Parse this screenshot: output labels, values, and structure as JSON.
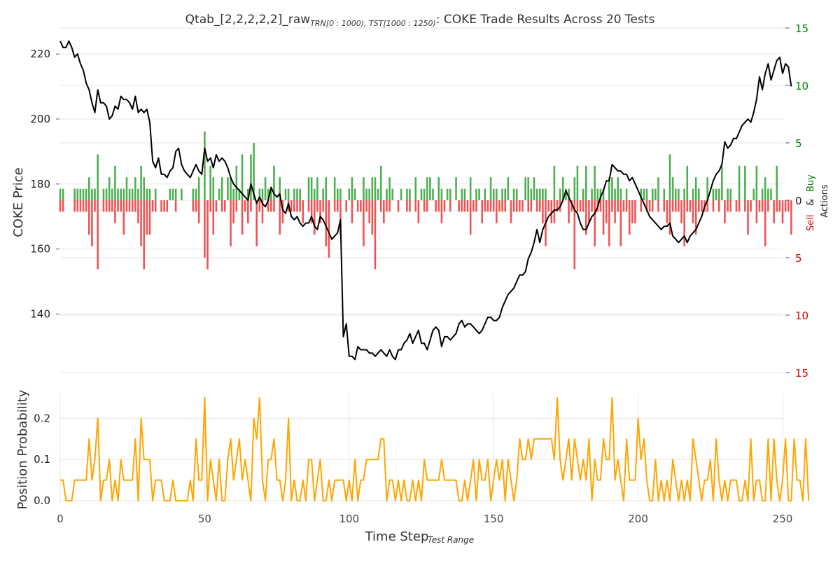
{
  "title": {
    "prefix": "Qtab_[2,2,2,2,2]_raw",
    "subscript": "TRN[0 : 1000), TST[1000 : 1250)",
    "suffix": ": COKE Trade Results Across 20 Tests"
  },
  "colors": {
    "price": "#000000",
    "buy": "#4caf50",
    "sell": "#f05252",
    "prob": "#ffa500",
    "grid": "#e6e6e6",
    "buy_tick": "#008000",
    "sell_tick": "#e00000"
  },
  "labels": {
    "y_price": "COKE Price",
    "y_actions_sell": "Sell",
    "y_actions_amp": "&",
    "y_actions_buy": "Buy",
    "y_actions_word": "Actions",
    "y_prob": "Position Probability",
    "x_main": "Time Step",
    "x_sub": "Test Range"
  },
  "chart_data": [
    {
      "type": "line",
      "name": "price-and-actions",
      "xlim": [
        0,
        250
      ],
      "ylim": [
        122,
        228
      ],
      "y_ticks": [
        140,
        160,
        180,
        200,
        220
      ],
      "x_ticks": [
        0,
        50,
        100,
        150,
        200,
        250
      ],
      "actions_ylim": [
        -15,
        15
      ],
      "actions_ticks": [
        {
          "value": 15,
          "label": "15",
          "side": "buy"
        },
        {
          "value": 10,
          "label": "10",
          "side": "buy"
        },
        {
          "value": 5,
          "label": "5",
          "side": "buy"
        },
        {
          "value": 0,
          "label": "0",
          "side": "zero"
        },
        {
          "value": -5,
          "label": "5",
          "side": "sell"
        },
        {
          "value": -10,
          "label": "10",
          "side": "sell"
        },
        {
          "value": -15,
          "label": "15",
          "side": "sell"
        }
      ],
      "price": [
        224,
        222,
        222,
        224,
        222,
        219,
        220,
        217,
        215,
        211,
        209,
        205,
        202,
        209,
        205,
        205,
        204,
        200,
        201,
        204,
        203,
        207,
        206,
        206,
        205,
        203,
        207,
        202,
        203,
        202,
        203,
        199,
        187,
        185,
        188,
        183,
        183,
        182,
        184,
        185,
        190,
        191,
        186,
        184,
        183,
        182,
        184,
        186,
        184,
        183,
        191,
        187,
        188,
        185,
        189,
        187,
        188,
        187,
        185,
        182,
        180,
        179,
        178,
        177,
        176,
        175,
        180,
        177,
        174,
        176,
        174,
        173,
        175,
        179,
        177,
        176,
        177,
        172,
        171,
        174,
        170,
        169,
        170,
        168,
        167,
        168,
        168,
        170,
        167,
        166,
        170,
        169,
        167,
        165,
        163,
        164,
        165,
        169,
        133,
        137,
        127,
        127,
        126,
        130,
        129,
        129,
        129,
        128,
        128,
        127,
        128,
        129,
        128,
        127,
        129,
        127,
        126,
        129,
        129,
        131,
        132,
        134,
        131,
        133,
        135,
        131,
        131,
        129,
        132,
        135,
        136,
        135,
        130,
        133,
        133,
        132,
        133,
        134,
        137,
        138,
        136,
        137,
        137,
        136,
        135,
        134,
        135,
        137,
        139,
        139,
        138,
        138,
        139,
        142,
        144,
        146,
        147,
        148,
        150,
        152,
        152,
        153,
        157,
        159,
        162,
        166,
        162,
        166,
        168,
        170,
        171,
        172,
        172,
        173,
        175,
        178,
        176,
        174,
        172,
        171,
        168,
        166,
        166,
        168,
        170,
        171,
        173,
        176,
        178,
        181,
        181,
        186,
        185,
        184,
        184,
        183,
        183,
        181,
        182,
        180,
        178,
        176,
        174,
        172,
        170,
        169,
        168,
        167,
        166,
        167,
        167,
        168,
        164,
        163,
        162,
        163,
        164,
        162,
        164,
        165,
        166,
        168,
        170,
        173,
        175,
        178,
        181,
        183,
        184,
        186,
        193,
        191,
        192,
        194,
        194,
        196,
        198,
        199,
        200,
        199,
        202,
        206,
        213,
        209,
        214,
        217,
        212,
        215,
        218,
        219,
        214,
        217,
        216,
        210
      ],
      "buy_actions": [
        1,
        1,
        0,
        0,
        0,
        1,
        1,
        1,
        1,
        1,
        2,
        1,
        1,
        4,
        0,
        1,
        1,
        2,
        1,
        3,
        1,
        1,
        1,
        2,
        1,
        1,
        2,
        1,
        3,
        2,
        1,
        1,
        0,
        1,
        0,
        0,
        0,
        0,
        1,
        1,
        1,
        0,
        1,
        0,
        0,
        0,
        1,
        1,
        2,
        0,
        6,
        0,
        3,
        2,
        0,
        1,
        2,
        0,
        2,
        2,
        1,
        3,
        1,
        4,
        0,
        1,
        4,
        5,
        0,
        1,
        1,
        2,
        1,
        1,
        3,
        0,
        2,
        0,
        1,
        1,
        0,
        1,
        1,
        1,
        0,
        0,
        2,
        2,
        1,
        2,
        0,
        1,
        2,
        0,
        0,
        2,
        1,
        1,
        0,
        0,
        1,
        2,
        1,
        0,
        0,
        2,
        1,
        1,
        2,
        2,
        1,
        3,
        0,
        1,
        2,
        1,
        0,
        0,
        1,
        0,
        1,
        1,
        0,
        2,
        0,
        1,
        1,
        2,
        2,
        1,
        0,
        2,
        1,
        0,
        1,
        1,
        0,
        2,
        0,
        1,
        1,
        0,
        2,
        0,
        1,
        1,
        0,
        1,
        0,
        2,
        1,
        1,
        0,
        1,
        1,
        2,
        0,
        1,
        1,
        0,
        0,
        2,
        2,
        1,
        2,
        1,
        1,
        1,
        1,
        0,
        0,
        3,
        0,
        1,
        2,
        1,
        1,
        0,
        2,
        3,
        0,
        1,
        3,
        0,
        1,
        3,
        1,
        1,
        1,
        0,
        2,
        2,
        1,
        2,
        1,
        0,
        1,
        0,
        0,
        0,
        0,
        1,
        1,
        1,
        0,
        1,
        1,
        2,
        0,
        1,
        0,
        4,
        2,
        1,
        1,
        0,
        1,
        3,
        0,
        1,
        2,
        1,
        0,
        0,
        2,
        0,
        1,
        1,
        1,
        3,
        0,
        1,
        1,
        0,
        0,
        3,
        0,
        3,
        0,
        0,
        1,
        3,
        0,
        1,
        2,
        1,
        1,
        0,
        3,
        0
      ],
      "sell_actions": [
        1,
        1,
        0,
        0,
        0,
        1,
        1,
        1,
        1,
        1,
        3,
        4,
        1,
        6,
        0,
        1,
        1,
        1,
        1,
        2,
        1,
        1,
        3,
        1,
        1,
        1,
        1,
        2,
        4,
        6,
        3,
        3,
        1,
        1,
        0,
        1,
        1,
        1,
        0,
        0,
        1,
        0,
        0,
        0,
        0,
        0,
        1,
        1,
        2,
        0,
        5,
        6,
        1,
        3,
        1,
        0,
        1,
        1,
        0,
        4,
        2,
        1,
        0,
        3,
        1,
        2,
        1,
        0,
        4,
        1,
        2,
        0,
        1,
        1,
        1,
        0,
        3,
        2,
        0,
        1,
        1,
        1,
        1,
        1,
        2,
        0,
        1,
        2,
        3,
        1,
        2,
        1,
        4,
        5,
        0,
        1,
        1,
        3,
        0,
        1,
        0,
        2,
        0,
        1,
        1,
        4,
        1,
        2,
        3,
        6,
        0,
        1,
        2,
        1,
        1,
        0,
        0,
        1,
        0,
        0,
        1,
        1,
        0,
        1,
        2,
        0,
        1,
        1,
        0,
        0,
        1,
        1,
        2,
        1,
        0,
        1,
        0,
        0,
        1,
        1,
        1,
        1,
        3,
        1,
        1,
        0,
        2,
        1,
        1,
        1,
        1,
        2,
        1,
        1,
        1,
        0,
        2,
        1,
        1,
        1,
        1,
        0,
        1,
        1,
        0,
        1,
        1,
        2,
        4,
        1,
        2,
        2,
        1,
        1,
        0,
        0,
        2,
        1,
        6,
        1,
        1,
        1,
        3,
        2,
        1,
        4,
        1,
        1,
        3,
        2,
        4,
        1,
        2,
        1,
        4,
        1,
        1,
        3,
        2,
        2,
        0,
        1,
        0,
        1,
        1,
        1,
        0,
        1,
        0,
        1,
        2,
        3,
        1,
        1,
        1,
        2,
        4,
        1,
        1,
        2,
        3,
        1,
        1,
        1,
        1,
        0,
        1,
        0,
        1,
        0,
        2,
        1,
        1,
        0,
        1,
        1,
        0,
        1,
        3,
        1,
        0,
        2,
        1,
        1,
        4,
        1,
        0,
        2,
        1,
        1,
        2,
        1,
        1,
        3
      ],
      "xlabel": "Time Step",
      "ylabel": "COKE Price"
    },
    {
      "type": "line",
      "name": "position-probability",
      "xlim": [
        0,
        250
      ],
      "ylim": [
        -0.005,
        0.26
      ],
      "y_ticks": [
        0.0,
        0.1,
        0.2
      ],
      "y_tick_labels": [
        "0.0",
        "0.1",
        "0.2"
      ],
      "x_ticks": [
        0,
        50,
        100,
        150,
        200,
        250
      ],
      "x_tick_labels": [
        "0",
        "50",
        "100",
        "150",
        "200",
        "250"
      ],
      "values": [
        0.05,
        0.05,
        0.0,
        0.0,
        0.0,
        0.05,
        0.05,
        0.05,
        0.05,
        0.05,
        0.15,
        0.05,
        0.1,
        0.2,
        0.0,
        0.05,
        0.05,
        0.1,
        0.0,
        0.05,
        0.0,
        0.1,
        0.05,
        0.05,
        0.05,
        0.05,
        0.15,
        0.0,
        0.2,
        0.1,
        0.1,
        0.1,
        0.0,
        0.05,
        0.05,
        0.05,
        0.0,
        0.0,
        0.0,
        0.05,
        0.0,
        0.0,
        0.0,
        0.0,
        0.0,
        0.05,
        0.0,
        0.15,
        0.05,
        0.05,
        0.25,
        0.0,
        0.1,
        0.05,
        0.0,
        0.1,
        0.0,
        0.0,
        0.1,
        0.15,
        0.05,
        0.1,
        0.15,
        0.05,
        0.1,
        0.05,
        0.0,
        0.2,
        0.15,
        0.25,
        0.05,
        0.0,
        0.1,
        0.1,
        0.15,
        0.05,
        0.05,
        0.0,
        0.05,
        0.2,
        0.0,
        0.05,
        0.0,
        0.0,
        0.05,
        0.0,
        0.1,
        0.1,
        0.0,
        0.05,
        0.1,
        0.0,
        0.0,
        0.05,
        0.0,
        0.05,
        0.05,
        0.05,
        0.05,
        0.0,
        0.05,
        0.0,
        0.1,
        0.0,
        0.05,
        0.05,
        0.1,
        0.1,
        0.1,
        0.1,
        0.1,
        0.15,
        0.15,
        0.0,
        0.05,
        0.05,
        0.0,
        0.05,
        0.0,
        0.05,
        0.0,
        0.0,
        0.05,
        0.0,
        0.05,
        0.0,
        0.1,
        0.05,
        0.05,
        0.05,
        0.05,
        0.05,
        0.1,
        0.05,
        0.05,
        0.05,
        0.05,
        0.05,
        0.0,
        0.0,
        0.05,
        0.0,
        0.05,
        0.1,
        0.0,
        0.1,
        0.05,
        0.05,
        0.1,
        0.0,
        0.05,
        0.1,
        0.05,
        0.1,
        0.0,
        0.1,
        0.05,
        0.0,
        0.05,
        0.15,
        0.1,
        0.1,
        0.15,
        0.1,
        0.15,
        0.15,
        0.15,
        0.15,
        0.15,
        0.15,
        0.15,
        0.1,
        0.25,
        0.1,
        0.05,
        0.1,
        0.15,
        0.05,
        0.15,
        0.1,
        0.05,
        0.1,
        0.05,
        0.15,
        0.0,
        0.1,
        0.05,
        0.05,
        0.15,
        0.1,
        0.1,
        0.25,
        0.05,
        0.1,
        0.05,
        0.0,
        0.15,
        0.05,
        0.05,
        0.05,
        0.2,
        0.1,
        0.15,
        0.05,
        0.0,
        0.0,
        0.1,
        0.0,
        0.05,
        0.0,
        0.05,
        0.0,
        0.1,
        0.05,
        0.0,
        0.05,
        0.0,
        0.05,
        0.0,
        0.15,
        0.1,
        0.05,
        0.0,
        0.05,
        0.05,
        0.1,
        0.0,
        0.15,
        0.05,
        0.0,
        0.05,
        0.0,
        0.05,
        0.05,
        0.05,
        0.0,
        0.0,
        0.05,
        0.0,
        0.15,
        0.0,
        0.05,
        0.05,
        0.0,
        0.0,
        0.15,
        0.0,
        0.15,
        0.05,
        0.0,
        0.05,
        0.15,
        0.0,
        0.0,
        0.15,
        0.05,
        0.05,
        0.0,
        0.15,
        0.0
      ],
      "xlabel": "Time Step",
      "ylabel": "Position Probability"
    }
  ]
}
